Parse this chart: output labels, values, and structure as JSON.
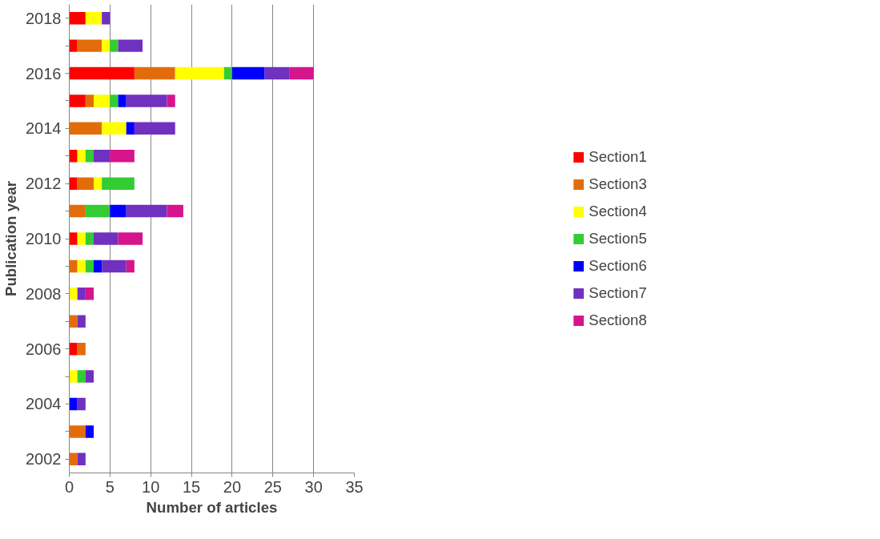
{
  "chart_data": {
    "type": "bar",
    "orientation": "horizontal",
    "stacked": true,
    "xlabel": "Number of articles",
    "ylabel": "Publication year",
    "categories": [
      "2018",
      null,
      "2016",
      null,
      "2014",
      null,
      "2012",
      null,
      "2010",
      null,
      "2008",
      null,
      "2006",
      null,
      "2004",
      null,
      "2002"
    ],
    "series": [
      {
        "name": "Section1",
        "color": "#ff0000",
        "values": [
          2,
          1,
          8,
          2,
          null,
          1,
          1,
          null,
          1,
          null,
          null,
          null,
          1,
          null,
          null,
          null,
          null
        ]
      },
      {
        "name": "Section3",
        "color": "#e36c0a",
        "values": [
          null,
          3,
          5,
          1,
          4,
          null,
          2,
          2,
          null,
          1,
          null,
          1,
          1,
          null,
          null,
          2,
          1
        ]
      },
      {
        "name": "Section4",
        "color": "#ffff00",
        "values": [
          2,
          1,
          6,
          2,
          3,
          1,
          1,
          null,
          1,
          1,
          1,
          null,
          null,
          1,
          null,
          null,
          null
        ]
      },
      {
        "name": "Section5",
        "color": "#33cc33",
        "values": [
          null,
          1,
          1,
          1,
          null,
          1,
          4,
          3,
          1,
          1,
          null,
          null,
          null,
          1,
          null,
          null,
          null
        ]
      },
      {
        "name": "Section6",
        "color": "#0000ff",
        "values": [
          null,
          null,
          4,
          1,
          1,
          null,
          null,
          2,
          null,
          1,
          null,
          null,
          null,
          null,
          1,
          1,
          null
        ]
      },
      {
        "name": "Section7",
        "color": "#7030c0",
        "values": [
          1,
          3,
          3,
          5,
          5,
          2,
          null,
          5,
          3,
          3,
          1,
          1,
          null,
          1,
          1,
          null,
          1
        ]
      },
      {
        "name": "Section8",
        "color": "#d6148c",
        "values": [
          null,
          null,
          3,
          1,
          null,
          3,
          null,
          2,
          3,
          1,
          1,
          null,
          null,
          null,
          null,
          null,
          null
        ]
      }
    ],
    "xlim": [
      0,
      35
    ],
    "xticks": [
      0,
      5,
      10,
      15,
      20,
      25,
      30,
      35
    ],
    "grid": "x",
    "legend": "right"
  }
}
